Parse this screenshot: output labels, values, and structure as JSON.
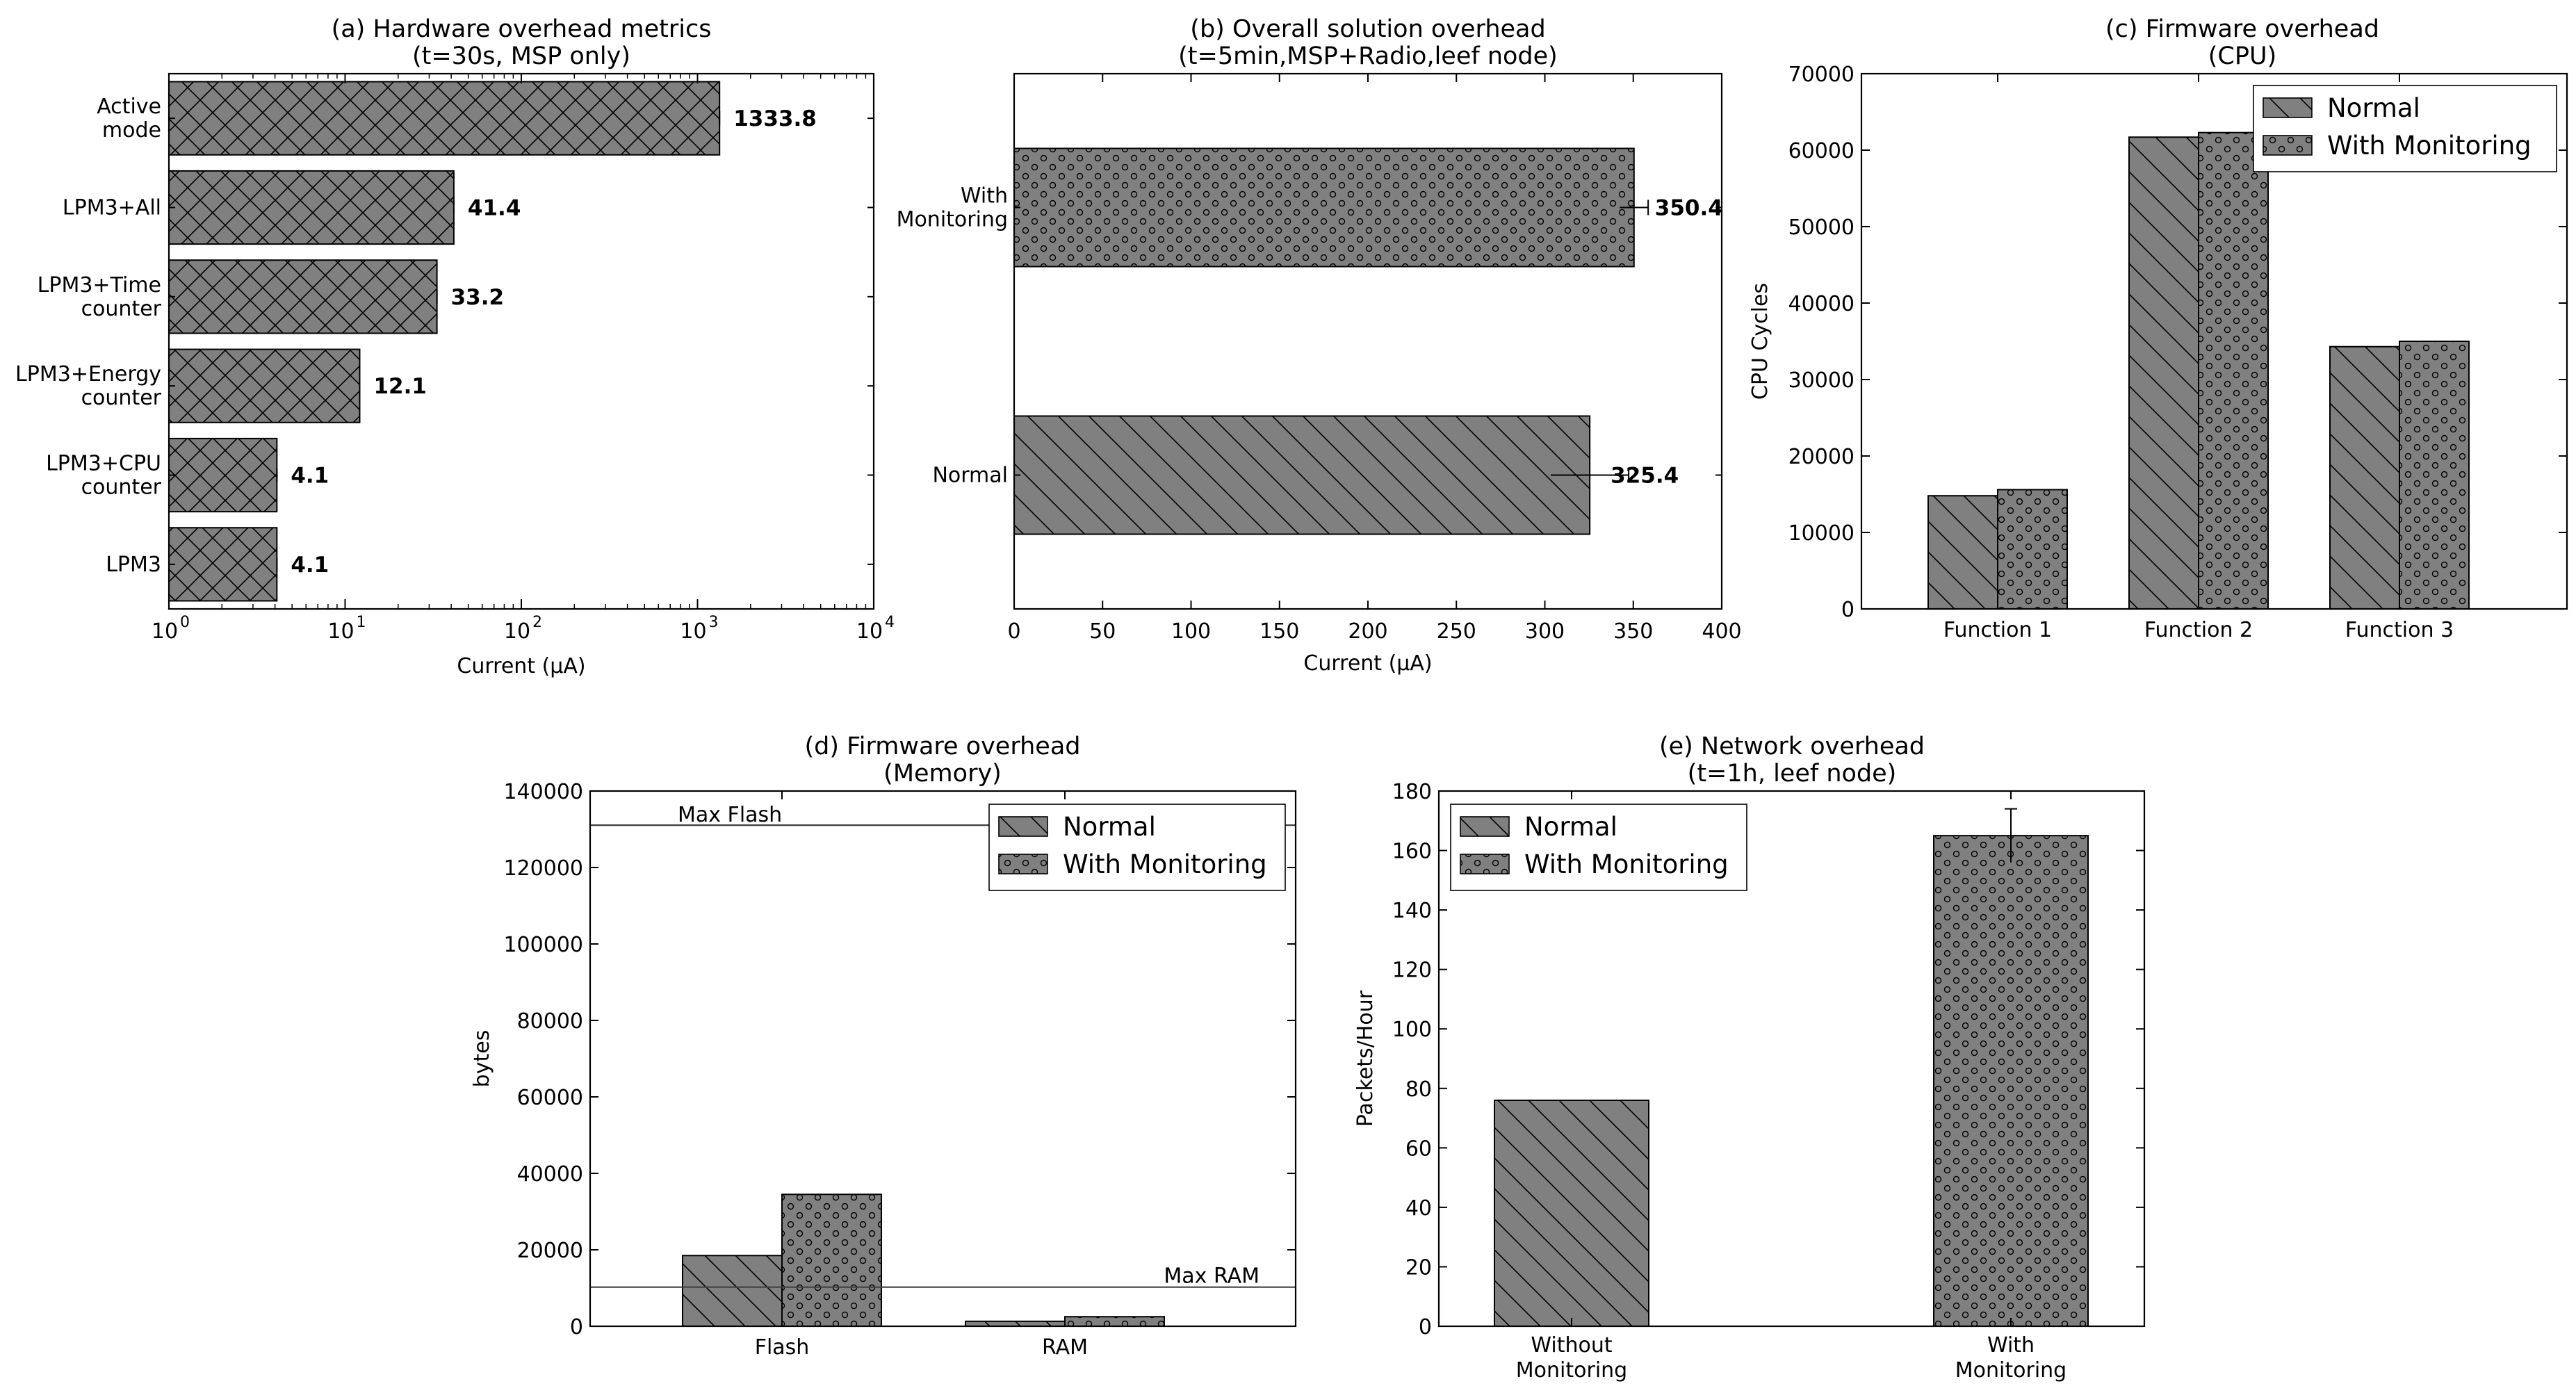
{
  "colors": {
    "bar_fill": "#808080",
    "bar_edge": "#000000",
    "ref_line": "#404040",
    "background": "#ffffff"
  },
  "chart_data": [
    {
      "id": "a",
      "type": "bar",
      "orientation": "horizontal",
      "title_line1": "(a) Hardware overhead metrics",
      "title_line2": "(t=30s, MSP only)",
      "xlabel": "Current (μA)",
      "ylabel": "",
      "xscale": "log",
      "xlim": [
        1,
        10000
      ],
      "xticks": [
        {
          "value": 1,
          "base": "10",
          "exp": "0"
        },
        {
          "value": 10,
          "base": "10",
          "exp": "1"
        },
        {
          "value": 100,
          "base": "10",
          "exp": "2"
        },
        {
          "value": 1000,
          "base": "10",
          "exp": "3"
        },
        {
          "value": 10000,
          "base": "10",
          "exp": "4"
        }
      ],
      "pattern": "crosshatch",
      "categories": [
        {
          "lines": [
            "Active",
            "mode"
          ],
          "value": 1333.8,
          "label": "1333.8"
        },
        {
          "lines": [
            "LPM3+All"
          ],
          "value": 41.4,
          "label": "41.4"
        },
        {
          "lines": [
            "LPM3+Time",
            "counter"
          ],
          "value": 33.2,
          "label": "33.2"
        },
        {
          "lines": [
            "LPM3+Energy",
            "counter"
          ],
          "value": 12.1,
          "label": "12.1"
        },
        {
          "lines": [
            "LPM3+CPU",
            "counter"
          ],
          "value": 4.1,
          "label": "4.1"
        },
        {
          "lines": [
            "LPM3"
          ],
          "value": 4.1,
          "label": "4.1"
        }
      ]
    },
    {
      "id": "b",
      "type": "bar",
      "orientation": "horizontal",
      "title_line1": "(b) Overall solution overhead",
      "title_line2": "(t=5min,MSP+Radio,leef node)",
      "xlabel": "Current (μA)",
      "ylabel": "",
      "xscale": "linear",
      "xlim": [
        0,
        400
      ],
      "xticks": [
        "0",
        "50",
        "100",
        "150",
        "200",
        "250",
        "300",
        "350",
        "400"
      ],
      "categories": [
        {
          "lines": [
            "With",
            "Monitoring"
          ],
          "value": 350.4,
          "label": "350.4",
          "err": 8,
          "pattern": "dots"
        },
        {
          "lines": [
            "Normal"
          ],
          "value": 325.4,
          "label": "325.4",
          "err": 22,
          "pattern": "diag"
        }
      ]
    },
    {
      "id": "c",
      "type": "bar",
      "orientation": "vertical",
      "title_line1": "(c) Firmware overhead",
      "title_line2": "(CPU)",
      "xlabel": "",
      "ylabel": "CPU Cycles",
      "ylim": [
        0,
        70000
      ],
      "yticks": [
        "0",
        "10000",
        "20000",
        "30000",
        "40000",
        "50000",
        "60000",
        "70000"
      ],
      "categories": [
        "Function 1",
        "Function 2",
        "Function 3"
      ],
      "series": [
        {
          "name": "Normal",
          "pattern": "diag",
          "values": [
            14800,
            61700,
            34300
          ]
        },
        {
          "name": "With Monitoring",
          "pattern": "dots",
          "values": [
            15600,
            62300,
            35000
          ]
        }
      ],
      "legend": "top-right"
    },
    {
      "id": "d",
      "type": "bar",
      "orientation": "vertical",
      "title_line1": "(d) Firmware overhead",
      "title_line2": "(Memory)",
      "xlabel": "",
      "ylabel": "bytes",
      "ylim": [
        0,
        140000
      ],
      "yticks": [
        "0",
        "20000",
        "40000",
        "60000",
        "80000",
        "100000",
        "120000",
        "140000"
      ],
      "categories": [
        "Flash",
        "RAM"
      ],
      "series": [
        {
          "name": "Normal",
          "pattern": "diag",
          "values": [
            18500,
            1300
          ]
        },
        {
          "name": "With Monitoring",
          "pattern": "dots",
          "values": [
            34500,
            2500
          ]
        }
      ],
      "reference_lines": [
        {
          "label": "Max Flash",
          "value": 131072
        },
        {
          "label": "Max RAM",
          "value": 10240
        }
      ],
      "legend": "top-right"
    },
    {
      "id": "e",
      "type": "bar",
      "orientation": "vertical",
      "title_line1": "(e) Network overhead",
      "title_line2": "(t=1h, leef node)",
      "xlabel": "",
      "ylabel": "Packets/Hour",
      "ylim": [
        0,
        180
      ],
      "yticks": [
        "0",
        "20",
        "40",
        "60",
        "80",
        "100",
        "120",
        "140",
        "160",
        "180"
      ],
      "categories": [
        {
          "lines": [
            "Without",
            "Monitoring"
          ],
          "value": 76,
          "pattern": "diag",
          "err": 0
        },
        {
          "lines": [
            "With",
            "Monitoring"
          ],
          "value": 165,
          "pattern": "dots",
          "err": 9
        }
      ],
      "legend_entries": [
        {
          "name": "Normal",
          "pattern": "diag"
        },
        {
          "name": "With Monitoring",
          "pattern": "dots"
        }
      ],
      "legend": "top-left"
    }
  ]
}
